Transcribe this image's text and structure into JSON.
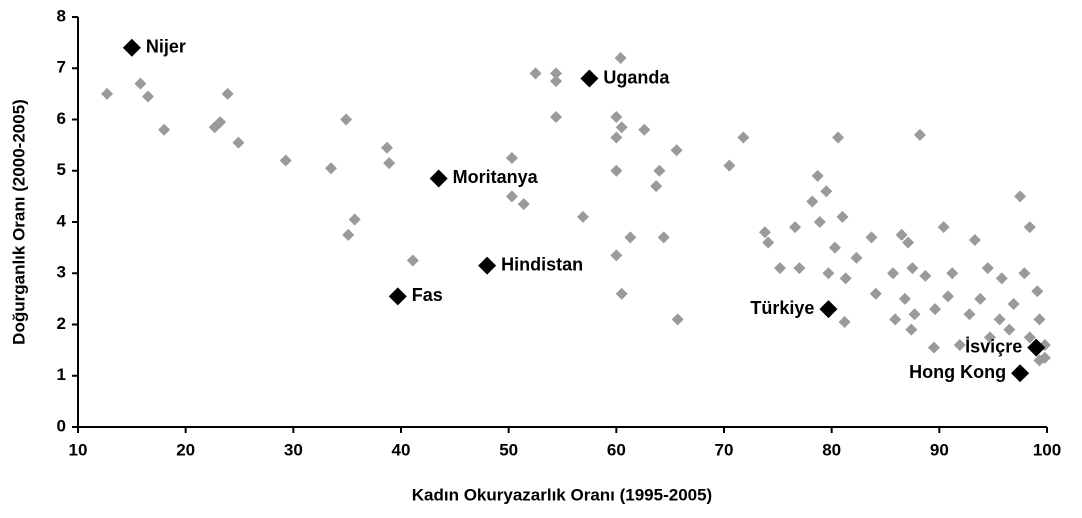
{
  "chart_data": {
    "type": "scatter",
    "x_label": "Kadın Okuryazarlık Oranı (1995-2005)",
    "y_label": "Doğurganlık Oranı (2000-2005)",
    "xlim": [
      10,
      100
    ],
    "xticks": [
      10,
      20,
      30,
      40,
      50,
      60,
      70,
      80,
      90,
      100
    ],
    "ylim": [
      0,
      8
    ],
    "yticks": [
      0,
      1,
      2,
      3,
      4,
      5,
      6,
      7,
      8
    ],
    "grid": false,
    "series": [
      {
        "color": "#9a9a9a",
        "x": [
          12.7,
          15.8,
          16.5,
          18,
          23.9,
          22.7,
          23.2,
          24.9,
          29.3,
          33.5,
          34.9,
          35.1,
          35.7,
          38.7,
          38.9,
          41.1,
          50.3,
          50.3,
          51.4,
          52.5,
          54.4,
          54.4,
          54.4,
          56.9,
          60,
          60,
          60,
          60,
          60.4,
          60.5,
          60.5,
          61.3,
          62.6,
          63.7,
          64,
          64.4,
          65.6,
          65.7,
          70.5,
          71.8,
          73.8,
          74.1,
          75.2,
          76.6,
          77,
          78.2,
          78.7,
          78.9,
          79.5,
          79.7,
          80.3,
          80.6,
          81,
          81.2,
          81.3,
          82.3,
          83.7,
          84.1,
          85.7,
          86.5,
          87.1,
          87.4,
          87.5,
          88.2,
          88.7,
          89.5,
          90.4,
          90.8,
          91.2,
          93.3,
          94.5,
          95.8,
          97.5,
          98.4,
          97.9,
          99.1,
          99.3,
          99.8,
          99.8,
          96.5,
          98.4,
          95.6,
          94.7,
          92.8,
          91.9,
          86.8,
          85.9,
          87.7,
          89.6,
          93.8,
          96.9,
          99.3
        ],
        "values": [
          6.5,
          6.7,
          6.45,
          5.8,
          6.5,
          5.85,
          5.95,
          5.55,
          5.2,
          5.05,
          6.0,
          3.75,
          4.05,
          5.45,
          5.15,
          3.25,
          5.25,
          4.5,
          4.35,
          6.9,
          6.9,
          6.75,
          6.05,
          4.1,
          3.35,
          5.0,
          5.65,
          6.05,
          7.2,
          5.85,
          2.6,
          3.7,
          5.8,
          4.7,
          5.0,
          3.7,
          5.4,
          2.1,
          5.1,
          5.65,
          3.8,
          3.6,
          3.1,
          3.9,
          3.1,
          4.4,
          4.9,
          4.0,
          4.6,
          3.0,
          3.5,
          5.65,
          4.1,
          2.05,
          2.9,
          3.3,
          3.7,
          2.6,
          3.0,
          3.75,
          3.6,
          1.9,
          3.1,
          5.7,
          2.95,
          1.55,
          3.9,
          2.55,
          3.0,
          3.65,
          3.1,
          2.9,
          4.5,
          3.9,
          3.0,
          2.65,
          2.1,
          1.6,
          1.35,
          1.9,
          1.75,
          2.1,
          1.75,
          2.2,
          1.6,
          2.5,
          2.1,
          2.2,
          2.3,
          2.5,
          2.4,
          1.3
        ]
      },
      {
        "color": "#000000",
        "x": [
          15,
          57.5,
          43.5,
          48,
          39.7,
          79.7,
          99,
          97.5
        ],
        "values": [
          7.4,
          6.8,
          4.85,
          3.15,
          2.55,
          2.3,
          1.55,
          1.05
        ],
        "point_labels": [
          "Nijer",
          "Uganda",
          "Moritanya",
          "Hindistan",
          "Fas",
          "Türkiye",
          "İsviçre",
          "Hong Kong"
        ]
      }
    ]
  }
}
